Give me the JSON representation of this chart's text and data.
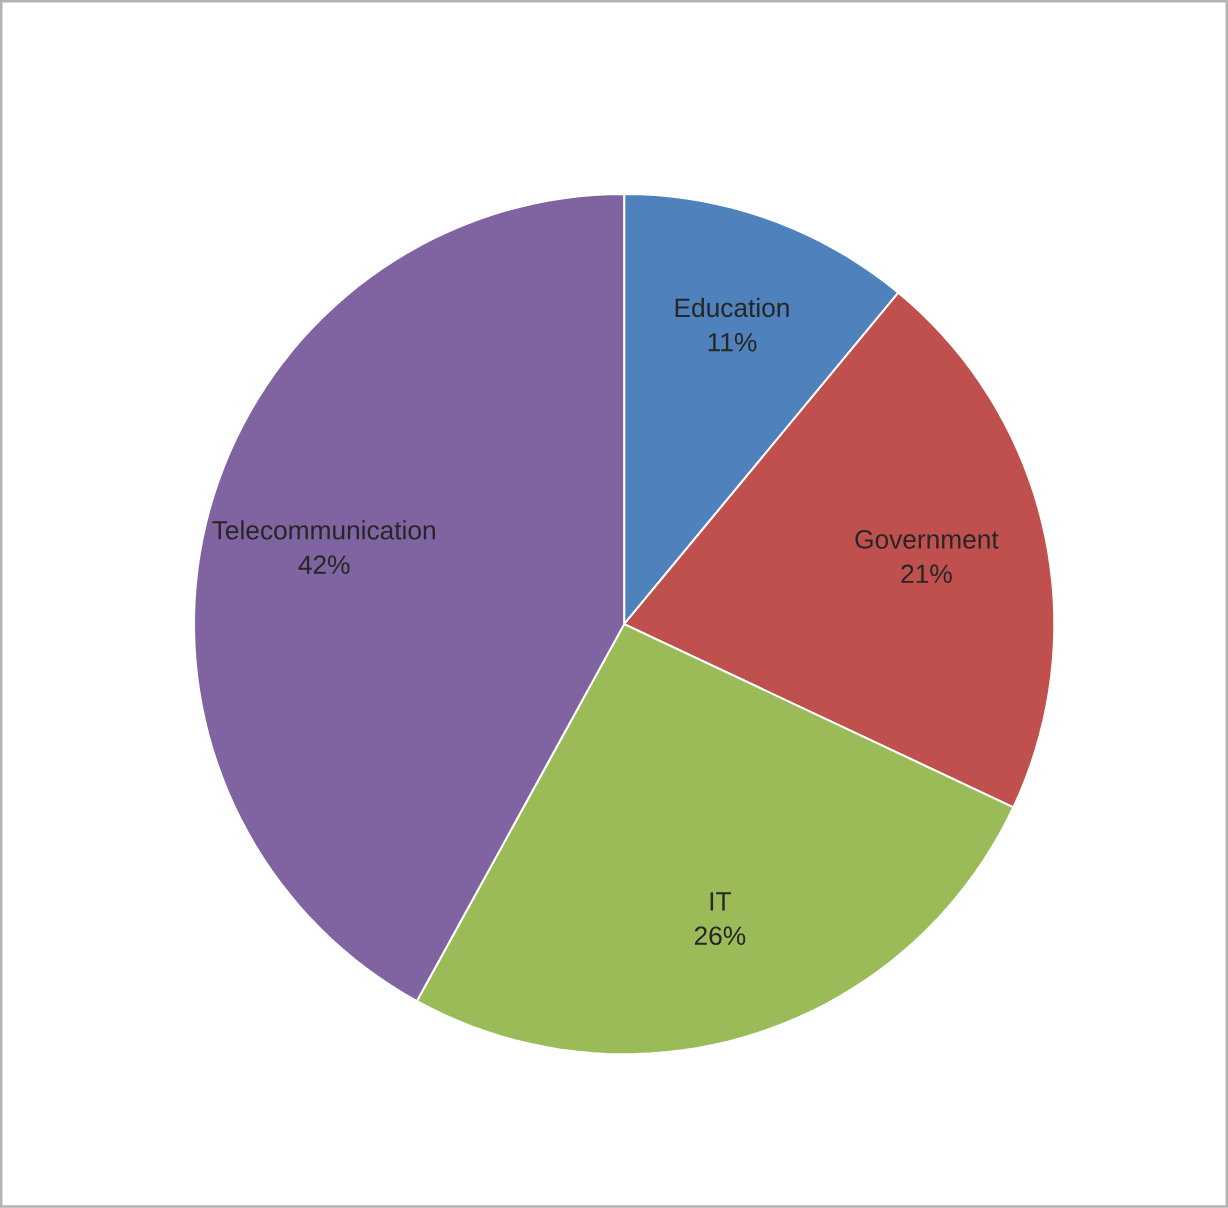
{
  "chart_data": {
    "type": "pie",
    "categories": [
      "Education",
      "Government",
      "IT",
      "Telecommunication"
    ],
    "values": [
      11,
      21,
      26,
      42
    ],
    "value_labels": [
      "11%",
      "21%",
      "26%",
      "42%"
    ],
    "colors": [
      "#4f81bd",
      "#c0504d",
      "#9bbb59",
      "#8064a2"
    ]
  }
}
